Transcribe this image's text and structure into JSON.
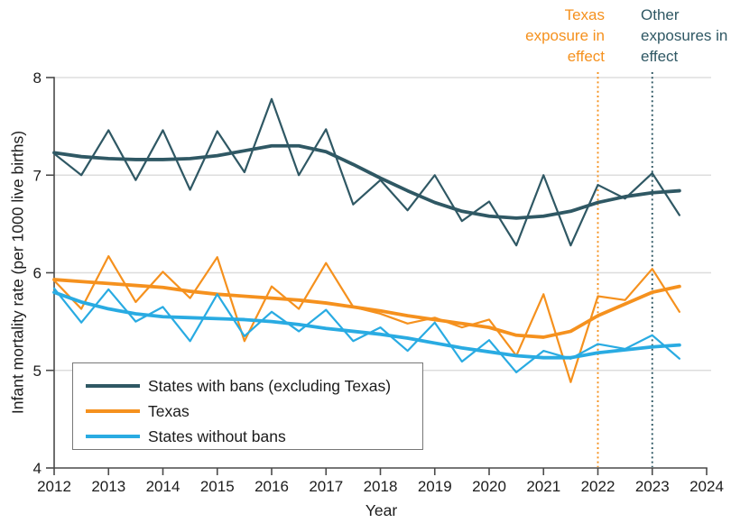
{
  "chart_data": {
    "type": "line",
    "title": "",
    "xlabel": "Year",
    "ylabel": "Infant mortality rate (per 1000 live births)",
    "xlim": [
      2012,
      2024
    ],
    "ylim": [
      4,
      8
    ],
    "xticks": [
      2012,
      2013,
      2014,
      2015,
      2016,
      2017,
      2018,
      2019,
      2020,
      2021,
      2022,
      2023,
      2024
    ],
    "yticks": [
      4,
      5,
      6,
      7,
      8
    ],
    "grid": "horizontal-at-5-6-7-8",
    "legend_position": "inside-lower-left-box",
    "x": [
      2012,
      2012.5,
      2013,
      2013.5,
      2014,
      2014.5,
      2015,
      2015.5,
      2016,
      2016.5,
      2017,
      2017.5,
      2018,
      2018.5,
      2019,
      2019.5,
      2020,
      2020.5,
      2021,
      2021.5,
      2022,
      2022.5,
      2023,
      2023.5
    ],
    "series": [
      {
        "name": "States with bans (excluding Texas)",
        "color": "#2F5864",
        "raw": [
          7.22,
          7.0,
          7.46,
          6.95,
          7.46,
          6.85,
          7.45,
          7.03,
          7.78,
          7.0,
          7.47,
          6.7,
          6.95,
          6.64,
          7.0,
          6.53,
          6.73,
          6.28,
          7.0,
          6.28,
          6.9,
          6.76,
          7.02,
          6.59
        ],
        "trend": [
          7.23,
          7.19,
          7.17,
          7.16,
          7.16,
          7.17,
          7.2,
          7.25,
          7.3,
          7.3,
          7.24,
          7.11,
          6.97,
          6.84,
          6.72,
          6.63,
          6.58,
          6.56,
          6.58,
          6.63,
          6.72,
          6.78,
          6.82,
          6.84
        ]
      },
      {
        "name": "Texas",
        "color": "#F5911E",
        "raw": [
          5.92,
          5.63,
          6.17,
          5.7,
          6.01,
          5.74,
          6.16,
          5.3,
          5.86,
          5.63,
          6.1,
          5.65,
          5.58,
          5.48,
          5.54,
          5.44,
          5.52,
          5.15,
          5.78,
          4.88,
          5.76,
          5.72,
          6.04,
          5.6
        ],
        "trend": [
          5.93,
          5.91,
          5.89,
          5.87,
          5.85,
          5.81,
          5.78,
          5.76,
          5.74,
          5.72,
          5.69,
          5.65,
          5.61,
          5.56,
          5.52,
          5.48,
          5.44,
          5.36,
          5.34,
          5.4,
          5.56,
          5.68,
          5.8,
          5.86
        ]
      },
      {
        "name": "States without bans",
        "color": "#29ABE2",
        "raw": [
          5.84,
          5.49,
          5.83,
          5.5,
          5.65,
          5.3,
          5.78,
          5.35,
          5.6,
          5.4,
          5.62,
          5.3,
          5.44,
          5.2,
          5.49,
          5.09,
          5.31,
          4.98,
          5.2,
          5.12,
          5.27,
          5.22,
          5.36,
          5.12
        ],
        "trend": [
          5.8,
          5.7,
          5.63,
          5.58,
          5.55,
          5.54,
          5.53,
          5.52,
          5.5,
          5.47,
          5.43,
          5.4,
          5.37,
          5.33,
          5.28,
          5.23,
          5.19,
          5.15,
          5.13,
          5.13,
          5.18,
          5.21,
          5.24,
          5.26
        ]
      }
    ],
    "events": [
      {
        "label": "Texas exposure in effect",
        "x": 2022,
        "color": "#F5911E"
      },
      {
        "label": "Other exposures in effect",
        "x": 2023,
        "color": "#2F5864"
      }
    ],
    "style": {
      "axis_color": "#4a4a4a",
      "grid_color": "#dddddd",
      "tick_label_color": "#1c1c1c",
      "raw_line_width": 2.2,
      "trend_line_width": 3.8
    }
  }
}
